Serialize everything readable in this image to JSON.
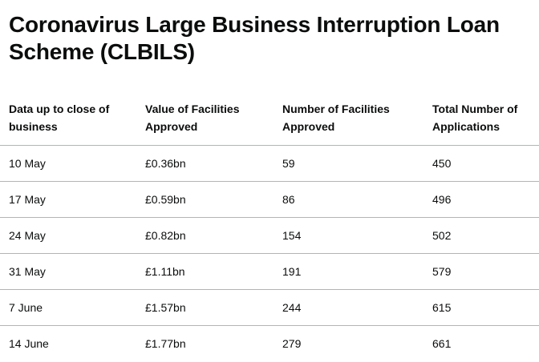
{
  "page": {
    "title": "Coronavirus Large Business Interruption Loan Scheme (CLBILS)"
  },
  "table": {
    "headers": [
      "Data up to close of business",
      "Value of Facilities Approved",
      "Number of Facilities Approved",
      "Total Number of Applications"
    ],
    "rows": [
      [
        "10 May",
        "£0.36bn",
        "59",
        "450"
      ],
      [
        "17 May",
        "£0.59bn",
        "86",
        "496"
      ],
      [
        "24 May",
        "£0.82bn",
        "154",
        "502"
      ],
      [
        "31 May",
        "£1.11bn",
        "191",
        "579"
      ],
      [
        "7 June",
        "£1.57bn",
        "244",
        "615"
      ],
      [
        "14 June",
        "£1.77bn",
        "279",
        "661"
      ]
    ]
  }
}
